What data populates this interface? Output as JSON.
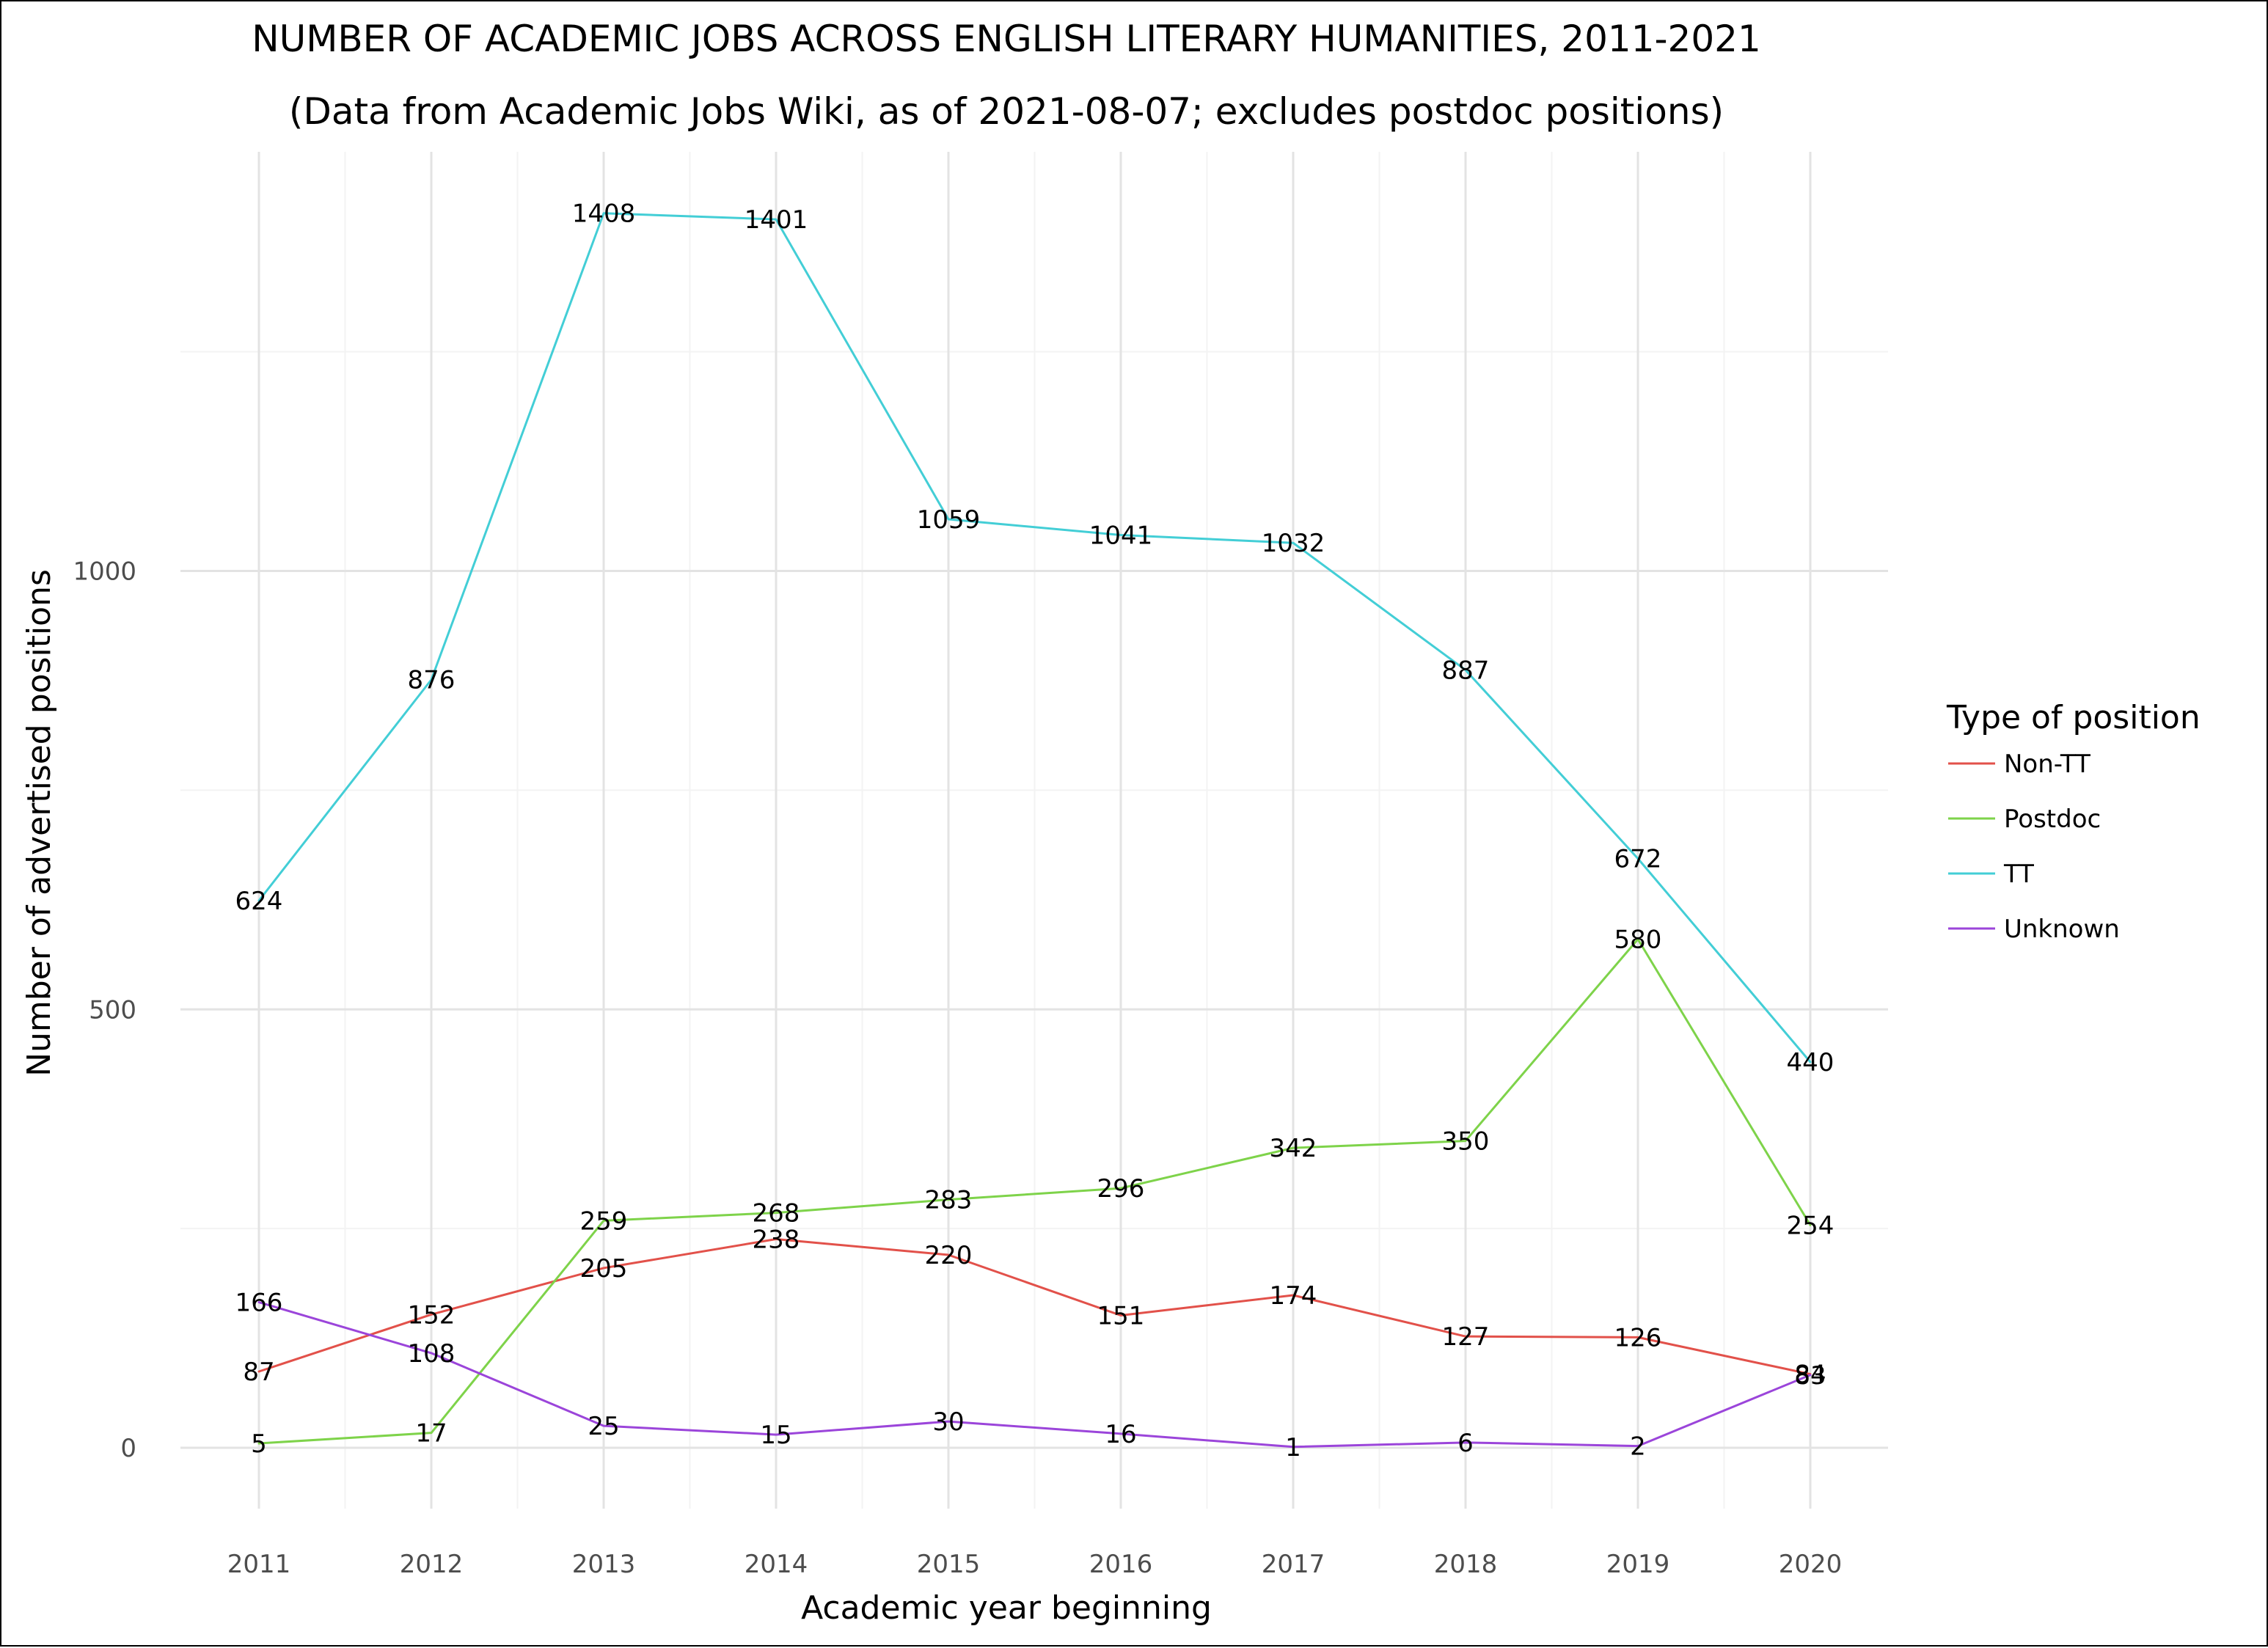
{
  "chart_data": {
    "type": "line",
    "title": "NUMBER OF ACADEMIC JOBS ACROSS ENGLISH LITERARY HUMANITIES, 2011-2021",
    "subtitle": "(Data from Academic Jobs Wiki, as of 2021-08-07; excludes postdoc positions)",
    "xlabel": "Academic year beginning",
    "ylabel": "Number of advertised positions",
    "x": [
      2011,
      2012,
      2013,
      2014,
      2015,
      2016,
      2017,
      2018,
      2019,
      2020
    ],
    "x_tick_labels": [
      "2011",
      "2012",
      "2013",
      "2014",
      "2015",
      "2016",
      "2017",
      "2018",
      "2019",
      "2020"
    ],
    "y_ticks": [
      0,
      500,
      1000
    ],
    "y_tick_labels": [
      "0",
      "500",
      "1000"
    ],
    "ylim": [
      -70,
      1485
    ],
    "grid": true,
    "legend": {
      "title": "Type of position",
      "placement": "right"
    },
    "series": [
      {
        "name": "Non-TT",
        "color": "#E2514A",
        "values": [
          87,
          152,
          205,
          238,
          220,
          151,
          174,
          127,
          126,
          84
        ]
      },
      {
        "name": "Postdoc",
        "color": "#7ED34A",
        "values": [
          5,
          17,
          259,
          268,
          283,
          296,
          342,
          350,
          580,
          254
        ]
      },
      {
        "name": "TT",
        "color": "#43CED6",
        "values": [
          624,
          876,
          1408,
          1401,
          1059,
          1041,
          1032,
          887,
          672,
          440
        ]
      },
      {
        "name": "Unknown",
        "color": "#9B45DA",
        "values": [
          166,
          108,
          25,
          15,
          30,
          16,
          1,
          6,
          2,
          83
        ]
      }
    ]
  }
}
